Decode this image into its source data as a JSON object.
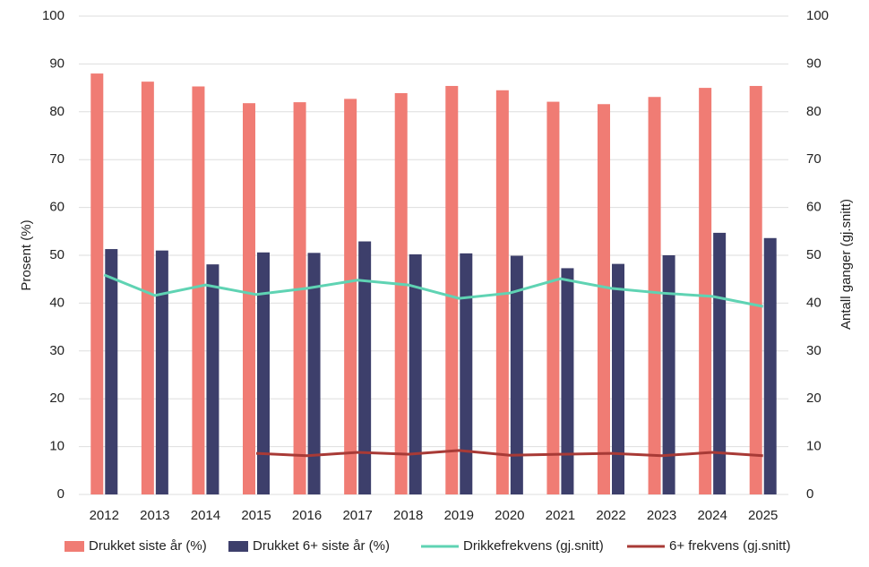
{
  "chart_data": {
    "type": "bar",
    "categories": [
      "2012",
      "2013",
      "2014",
      "2015",
      "2016",
      "2017",
      "2018",
      "2019",
      "2020",
      "2021",
      "2022",
      "2023",
      "2024",
      "2025"
    ],
    "series": [
      {
        "name": "Drukket siste år (%)",
        "type": "bar",
        "color": "#f07c74",
        "values": [
          88,
          86.3,
          85.3,
          81.8,
          82,
          82.7,
          83.9,
          85.4,
          84.5,
          82.1,
          81.6,
          83.1,
          85,
          85.4
        ]
      },
      {
        "name": "Drukket 6+ siste år (%)",
        "type": "bar",
        "color": "#3d3f6b",
        "values": [
          51.3,
          51,
          48.1,
          50.6,
          50.5,
          52.9,
          50.2,
          50.4,
          49.9,
          47.3,
          48.2,
          50,
          54.7,
          53.6
        ]
      },
      {
        "name": "Drikkefrekvens (gj.snitt)",
        "type": "line",
        "axis": "y2",
        "color": "#5fd3b3",
        "values": [
          45.9,
          41.6,
          43.8,
          41.8,
          43.1,
          44.8,
          43.8,
          41,
          42.1,
          45.1,
          43.1,
          42.1,
          41.4,
          39.3
        ]
      },
      {
        "name": "6+ frekvens (gj.snitt)",
        "type": "line",
        "axis": "y2",
        "color": "#a83a36",
        "values": [
          null,
          null,
          null,
          8.6,
          8.1,
          8.8,
          8.4,
          9.2,
          8.2,
          8.4,
          8.6,
          8.1,
          8.8,
          8.1
        ]
      }
    ],
    "ylabel": "Prosent (%)",
    "y2label": "Antall ganger (gj.snitt)",
    "ylim": [
      0,
      100
    ],
    "yticks": [
      0,
      10,
      20,
      30,
      40,
      50,
      60,
      70,
      80,
      90,
      100
    ],
    "y2lim": [
      0,
      100
    ],
    "y2ticks": [
      0,
      10,
      20,
      30,
      40,
      50,
      60,
      70,
      80,
      90,
      100
    ],
    "grid": true,
    "legend": "bottom"
  }
}
